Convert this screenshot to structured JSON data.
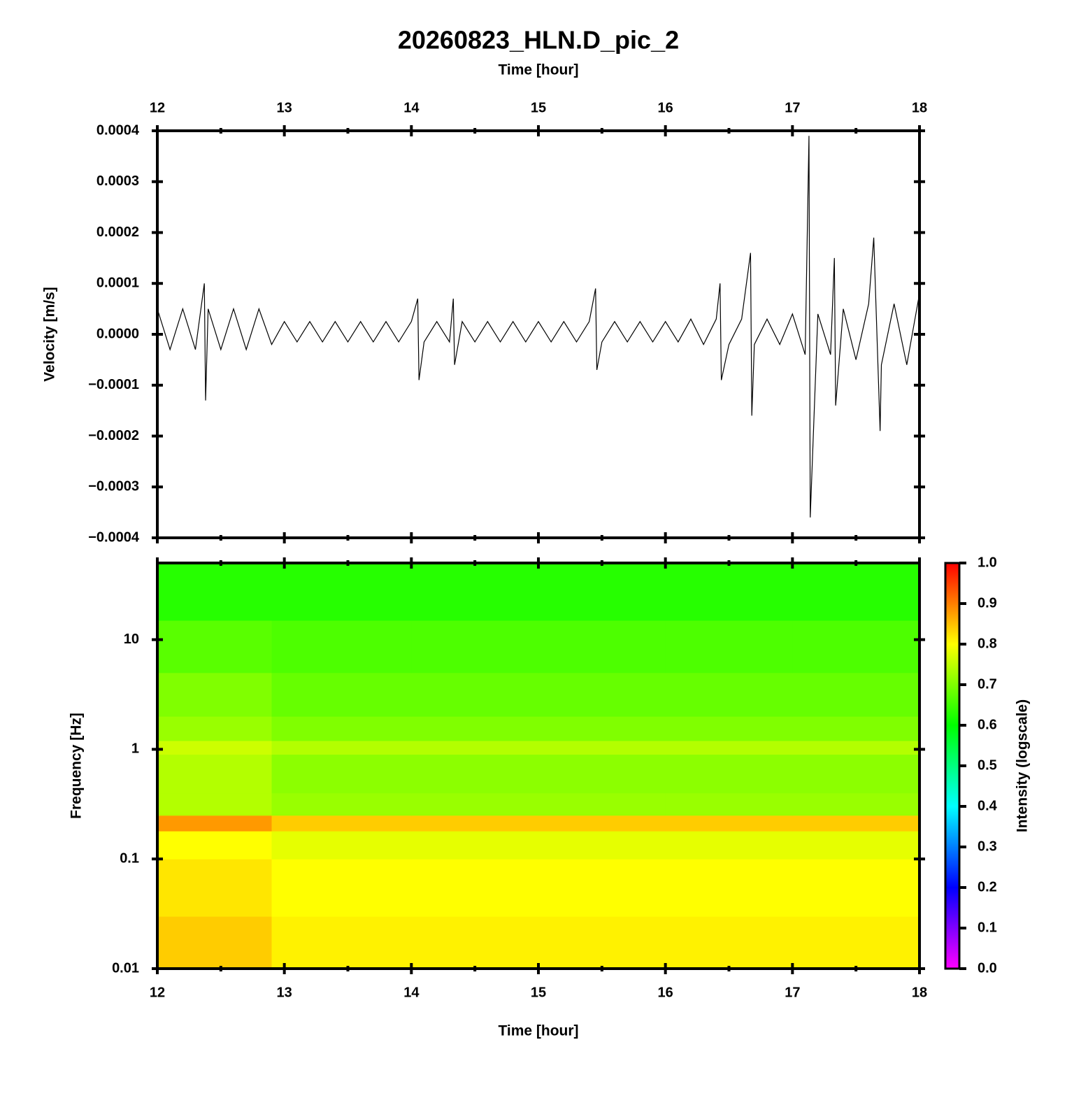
{
  "chart_data": [
    {
      "type": "line",
      "title": "20260823_HLN.D_pic_2",
      "xlabel": "Time [hour]",
      "ylabel": "Velocity [m/s]",
      "xlim": [
        12,
        18
      ],
      "xticks": [
        12,
        13,
        14,
        15,
        16,
        17,
        18
      ],
      "ylim": [
        -0.0004,
        0.0004
      ],
      "yticks": [
        {
          "value": -0.0004,
          "label": "−0.0004"
        },
        {
          "value": -0.0003,
          "label": "−0.0003"
        },
        {
          "value": -0.0002,
          "label": "−0.0002"
        },
        {
          "value": -0.0001,
          "label": "−0.0001"
        },
        {
          "value": 0,
          "label": "0.0000"
        },
        0.0001,
        0.0002,
        0.0003,
        0.0004
      ],
      "color": "#000000",
      "x": [
        12.0,
        12.1,
        12.2,
        12.3,
        12.37,
        12.38,
        12.4,
        12.5,
        12.6,
        12.7,
        12.8,
        12.9,
        13.0,
        13.1,
        13.2,
        13.3,
        13.4,
        13.5,
        13.6,
        13.7,
        13.8,
        13.9,
        14.0,
        14.05,
        14.06,
        14.1,
        14.2,
        14.3,
        14.33,
        14.34,
        14.4,
        14.5,
        14.6,
        14.7,
        14.8,
        14.9,
        15.0,
        15.1,
        15.2,
        15.3,
        15.4,
        15.45,
        15.46,
        15.5,
        15.6,
        15.7,
        15.8,
        15.9,
        16.0,
        16.1,
        16.2,
        16.3,
        16.4,
        16.43,
        16.44,
        16.5,
        16.6,
        16.67,
        16.68,
        16.7,
        16.8,
        16.9,
        17.0,
        17.1,
        17.13,
        17.14,
        17.2,
        17.3,
        17.33,
        17.34,
        17.4,
        17.5,
        17.6,
        17.64,
        17.69,
        17.7,
        17.8,
        17.9,
        18.0
      ],
      "values": [
        5e-05,
        -3e-05,
        5e-05,
        -3e-05,
        0.0001,
        -0.00013,
        5e-05,
        -3e-05,
        5e-05,
        -3e-05,
        5e-05,
        -2e-05,
        2.5e-05,
        -1.5e-05,
        2.5e-05,
        -1.5e-05,
        2.5e-05,
        -1.5e-05,
        2.5e-05,
        -1.5e-05,
        2.5e-05,
        -1.5e-05,
        2.5e-05,
        7e-05,
        -9e-05,
        -1.5e-05,
        2.5e-05,
        -1.5e-05,
        7e-05,
        -6e-05,
        2.5e-05,
        -1.5e-05,
        2.5e-05,
        -1.5e-05,
        2.5e-05,
        -1.5e-05,
        2.5e-05,
        -1.5e-05,
        2.5e-05,
        -1.5e-05,
        2.5e-05,
        9e-05,
        -7e-05,
        -1.5e-05,
        2.5e-05,
        -1.5e-05,
        2.5e-05,
        -1.5e-05,
        2.5e-05,
        -1.5e-05,
        3e-05,
        -2e-05,
        3e-05,
        0.0001,
        -9e-05,
        -2e-05,
        3e-05,
        0.00016,
        -0.00016,
        -2e-05,
        3e-05,
        -2e-05,
        4e-05,
        -4e-05,
        0.00039,
        -0.00036,
        4e-05,
        -4e-05,
        0.00015,
        -0.00014,
        5e-05,
        -5e-05,
        6e-05,
        0.00019,
        -0.00019,
        -6e-05,
        6e-05,
        -6e-05,
        8e-05
      ]
    },
    {
      "type": "heatmap",
      "xlabel": "Time [hour]",
      "ylabel": "Frequency [Hz]",
      "colorbar_label": "Intensity (logscale)",
      "xlim": [
        12,
        18
      ],
      "xticks": [
        12,
        13,
        14,
        15,
        16,
        17,
        18
      ],
      "ylim": [
        0.01,
        50
      ],
      "log_y": true,
      "yticks": [
        0.01,
        0.1,
        1,
        10
      ],
      "x": [
        12,
        12.9,
        14,
        15,
        16,
        17,
        18
      ],
      "y": [
        0.01,
        0.03,
        0.1,
        0.18,
        0.25,
        0.4,
        0.6,
        0.9,
        1.2,
        2,
        5,
        15,
        50
      ],
      "values": [
        [
          0.84,
          0.81,
          0.81,
          0.81,
          0.81,
          0.81
        ],
        [
          0.82,
          0.8,
          0.8,
          0.8,
          0.8,
          0.8
        ],
        [
          0.8,
          0.78,
          0.78,
          0.78,
          0.78,
          0.78
        ],
        [
          0.88,
          0.84,
          0.84,
          0.84,
          0.84,
          0.84
        ],
        [
          0.74,
          0.72,
          0.72,
          0.72,
          0.72,
          0.72
        ],
        [
          0.74,
          0.71,
          0.71,
          0.71,
          0.71,
          0.71
        ],
        [
          0.74,
          0.71,
          0.71,
          0.71,
          0.71,
          0.71
        ],
        [
          0.76,
          0.74,
          0.74,
          0.74,
          0.74,
          0.74
        ],
        [
          0.72,
          0.7,
          0.7,
          0.7,
          0.7,
          0.7
        ],
        [
          0.7,
          0.68,
          0.68,
          0.68,
          0.68,
          0.68
        ],
        [
          0.67,
          0.66,
          0.66,
          0.66,
          0.66,
          0.66
        ],
        [
          0.63,
          0.63,
          0.63,
          0.63,
          0.63,
          0.63
        ]
      ],
      "colorscale": [
        "#ff00ff",
        "#0000ff",
        "#00ffff",
        "#00ff00",
        "#ffff00",
        "#ff0000"
      ],
      "clim": [
        0,
        1
      ],
      "cticks": [
        {
          "value": 0,
          "label": "0.0"
        },
        0.1,
        0.2,
        0.3,
        0.4,
        0.5,
        0.6,
        0.7,
        0.8,
        0.9,
        {
          "value": 1,
          "label": "1.0"
        }
      ]
    }
  ]
}
